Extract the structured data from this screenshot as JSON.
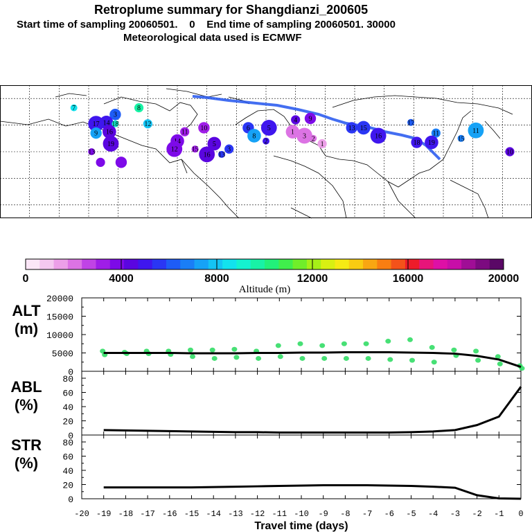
{
  "header": {
    "title": "Retroplume summary for Shangdianzi_200605",
    "line2": "Start time of sampling 20060501.    0    End time of sampling 20060501. 30000",
    "line3": "Meteorological data used is ECMWF"
  },
  "chart_data": [
    {
      "type": "scatter",
      "name": "retroplume-map",
      "description_labels": [
        "1",
        "2",
        "3",
        "4",
        "5",
        "6",
        "7",
        "8",
        "9",
        "10",
        "11",
        "12",
        "13",
        "14",
        "15",
        "16",
        "17",
        "18",
        "19"
      ],
      "clusters": [
        {
          "lon": -10,
          "lat": 73,
          "label": "7",
          "alt": 8500
        },
        {
          "lon": 34,
          "lat": 73,
          "label": "8",
          "alt": 9500
        },
        {
          "lon": 18,
          "lat": 68,
          "label": "3",
          "alt": 6200
        },
        {
          "lon": 12,
          "lat": 62,
          "label": "14",
          "alt": 5200
        },
        {
          "lon": 5,
          "lat": 61,
          "label": "17",
          "alt": 5000
        },
        {
          "lon": 18,
          "lat": 61,
          "label": "18",
          "alt": 9000
        },
        {
          "lon": 40,
          "lat": 61,
          "label": "12",
          "alt": 7800
        },
        {
          "lon": 5,
          "lat": 54,
          "label": "9",
          "alt": 7500
        },
        {
          "lon": 14,
          "lat": 55,
          "label": "16",
          "alt": 4200
        },
        {
          "lon": 15,
          "lat": 46,
          "label": "19",
          "alt": 4300
        },
        {
          "lon": 2,
          "lat": 40,
          "label": "13",
          "alt": 4000
        },
        {
          "lon": 8,
          "lat": 32,
          "label": "",
          "alt": 4000
        },
        {
          "lon": 22,
          "lat": 32,
          "label": "",
          "alt": 4000
        },
        {
          "lon": 60,
          "lat": 48,
          "label": "14",
          "alt": 3800
        },
        {
          "lon": 58,
          "lat": 42,
          "label": "12",
          "alt": 3600
        },
        {
          "lon": 72,
          "lat": 42,
          "label": "15",
          "alt": 3200
        },
        {
          "lon": 65,
          "lat": 55,
          "label": "11",
          "alt": 3000
        },
        {
          "lon": 78,
          "lat": 58,
          "label": "10",
          "alt": 3300
        },
        {
          "lon": 85,
          "lat": 46,
          "label": "5",
          "alt": 4700
        },
        {
          "lon": 80,
          "lat": 38,
          "label": "16",
          "alt": 4700
        },
        {
          "lon": 90,
          "lat": 38,
          "label": "13",
          "alt": 5600
        },
        {
          "lon": 95,
          "lat": 42,
          "label": "3",
          "alt": 5600
        },
        {
          "lon": 108,
          "lat": 58,
          "label": "6",
          "alt": 5500
        },
        {
          "lon": 112,
          "lat": 52,
          "label": "8",
          "alt": 7500
        },
        {
          "lon": 122,
          "lat": 58,
          "label": "5",
          "alt": 4800
        },
        {
          "lon": 120,
          "lat": 48,
          "label": "2",
          "alt": 5000
        },
        {
          "lon": 140,
          "lat": 64,
          "label": "4",
          "alt": 4200
        },
        {
          "lon": 150,
          "lat": 65,
          "label": "9",
          "alt": 3600
        },
        {
          "lon": 138,
          "lat": 55,
          "label": "1",
          "alt": 2200
        },
        {
          "lon": 146,
          "lat": 52,
          "label": "3",
          "alt": 2200
        },
        {
          "lon": 152,
          "lat": 50,
          "label": "2",
          "alt": 2000
        },
        {
          "lon": 158,
          "lat": 46,
          "label": "1",
          "alt": 1500
        },
        {
          "lon": 178,
          "lat": 58,
          "label": "13",
          "alt": 5400
        },
        {
          "lon": 186,
          "lat": 58,
          "label": "15",
          "alt": 5600
        },
        {
          "lon": 196,
          "lat": 52,
          "label": "16",
          "alt": 5000
        },
        {
          "lon": 218,
          "lat": 62,
          "label": "17",
          "alt": 6000
        },
        {
          "lon": 235,
          "lat": 54,
          "label": "11",
          "alt": 7000
        },
        {
          "lon": 222,
          "lat": 47,
          "label": "18",
          "alt": 5200
        },
        {
          "lon": 232,
          "lat": 47,
          "label": "19",
          "alt": 5000
        },
        {
          "lon": 262,
          "lat": 56,
          "label": "11",
          "alt": 7500
        },
        {
          "lon": 252,
          "lat": 50,
          "label": "15",
          "alt": 6500
        },
        {
          "lon": 285,
          "lat": 40,
          "label": "10",
          "alt": 4500
        },
        {
          "lon": 300,
          "lat": 45,
          "label": "4",
          "alt": 5800
        }
      ],
      "trajectory_label": "mean track to Shangdianzi",
      "colorbar": {
        "ticks": [
          "0",
          "4000",
          "8000",
          "12000",
          "16000",
          "20000"
        ],
        "label": "Altitude (m)"
      }
    },
    {
      "type": "line",
      "name": "ALT",
      "ylabel": "ALT\n(m)",
      "ylabel_lines": [
        "ALT",
        "(m)"
      ],
      "ylim": [
        0,
        20000
      ],
      "yticks": [
        "0",
        "5000",
        "10000",
        "15000",
        "20000"
      ],
      "x": [
        -19,
        -18,
        -17,
        -16,
        -15,
        -14,
        -13,
        -12,
        -11,
        -10,
        -9,
        -8,
        -7,
        -6,
        -5,
        -4,
        -3,
        -2,
        -1,
        0
      ],
      "values": [
        5000,
        5000,
        5000,
        5000,
        4900,
        4900,
        4900,
        5000,
        5000,
        5100,
        5100,
        5200,
        5200,
        5200,
        5100,
        5000,
        4800,
        4200,
        3200,
        1200
      ],
      "scatter": [
        {
          "x": -19,
          "y": [
            5500,
            4500
          ]
        },
        {
          "x": -18,
          "y": [
            5200,
            4800
          ]
        },
        {
          "x": -17,
          "y": [
            5500,
            4800
          ]
        },
        {
          "x": -16,
          "y": [
            5500,
            4600
          ]
        },
        {
          "x": -15,
          "y": [
            5800,
            4000
          ]
        },
        {
          "x": -14,
          "y": [
            5800,
            3500
          ]
        },
        {
          "x": -13,
          "y": [
            6000,
            3800
          ]
        },
        {
          "x": -12,
          "y": [
            5500,
            3500
          ]
        },
        {
          "x": -11,
          "y": [
            7000,
            4000
          ]
        },
        {
          "x": -10,
          "y": [
            7500,
            3500
          ]
        },
        {
          "x": -9,
          "y": [
            7000,
            3500
          ]
        },
        {
          "x": -8,
          "y": [
            7500,
            3500
          ]
        },
        {
          "x": -7,
          "y": [
            7500,
            3500
          ]
        },
        {
          "x": -6,
          "y": [
            8200,
            3200
          ]
        },
        {
          "x": -5,
          "y": [
            8600,
            3000
          ]
        },
        {
          "x": -4,
          "y": [
            6500,
            2500
          ]
        },
        {
          "x": -3,
          "y": [
            5800,
            4300
          ]
        },
        {
          "x": -2,
          "y": [
            5500,
            3000
          ]
        },
        {
          "x": -1,
          "y": [
            4000,
            2000
          ]
        },
        {
          "x": 0,
          "y": [
            1500,
            800
          ]
        }
      ]
    },
    {
      "type": "line",
      "name": "ABL",
      "ylabel_lines": [
        "ABL",
        "(%)"
      ],
      "ylim": [
        0,
        80
      ],
      "yticks": [
        "0",
        "20",
        "40",
        "60",
        "80"
      ],
      "x": [
        -19,
        -18,
        -17,
        -16,
        -15,
        -14,
        -13,
        -12,
        -11,
        -10,
        -9,
        -8,
        -7,
        -6,
        -5,
        -4,
        -3,
        -2,
        -1,
        0
      ],
      "values": [
        7,
        6.5,
        6,
        5.5,
        5,
        4.5,
        4,
        4,
        3.5,
        3.5,
        3.5,
        3.5,
        3.5,
        3.5,
        4,
        5,
        7,
        14,
        26,
        68
      ]
    },
    {
      "type": "line",
      "name": "STR",
      "ylabel_lines": [
        "STR",
        "(%)"
      ],
      "ylim": [
        0,
        80
      ],
      "yticks": [
        "0",
        "20",
        "40",
        "60",
        "80"
      ],
      "x": [
        -19,
        -18,
        -17,
        -16,
        -15,
        -14,
        -13,
        -12,
        -11,
        -10,
        -9,
        -8,
        -7,
        -6,
        -5,
        -4,
        -3,
        -2,
        -1,
        0
      ],
      "values": [
        16,
        16,
        16,
        16,
        16,
        16.5,
        17,
        17.5,
        18,
        18.5,
        19,
        19,
        19,
        18.5,
        18,
        17,
        15.5,
        5,
        0.5,
        0
      ]
    }
  ],
  "xaxis": {
    "ticks": [
      "-20",
      "-19",
      "-18",
      "-17",
      "-16",
      "-15",
      "-14",
      "-13",
      "-12",
      "-11",
      "-10",
      "-9",
      "-8",
      "-7",
      "-6",
      "-5",
      "-4",
      "-3",
      "-2",
      "-1",
      "0"
    ],
    "label": "Travel time (days)"
  },
  "colors": {
    "line": "#000000",
    "scatter": "#33dd66",
    "trajectory": "#2255ee"
  }
}
